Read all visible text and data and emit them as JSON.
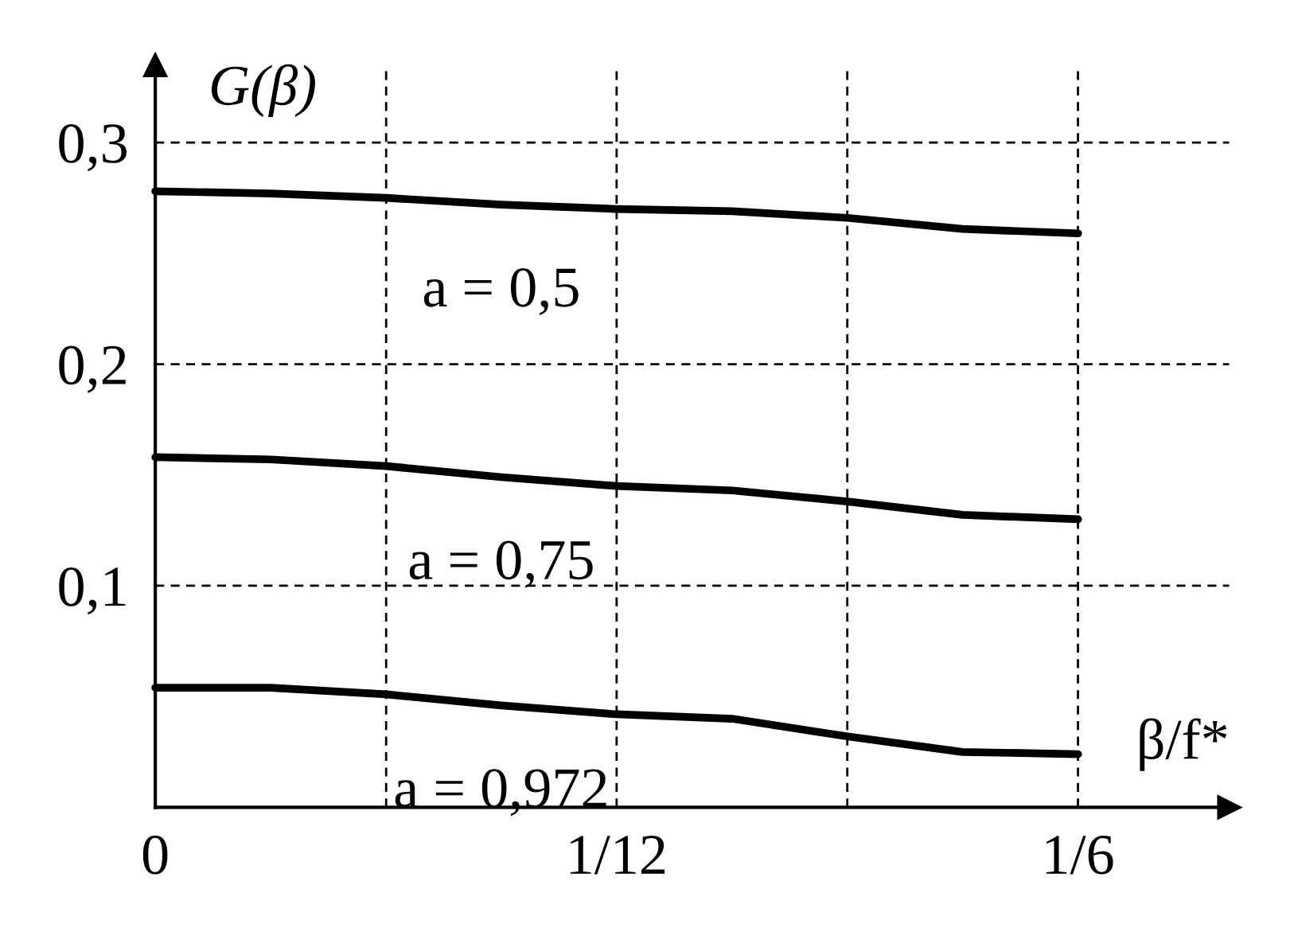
{
  "chart_data": {
    "type": "line",
    "xlabel": "β/f*",
    "ylabel": "G(β)",
    "x": [
      0,
      0.0208,
      0.0417,
      0.0625,
      0.0833,
      0.1042,
      0.125,
      0.1458,
      0.1667
    ],
    "series": [
      {
        "color": "#000000",
        "values": [
          0.278,
          0.277,
          0.275,
          0.272,
          0.27,
          0.269,
          0.266,
          0.261,
          0.259
        ]
      },
      {
        "color": "#000000",
        "values": [
          0.158,
          0.157,
          0.154,
          0.149,
          0.145,
          0.143,
          0.138,
          0.132,
          0.13
        ]
      },
      {
        "color": "#000000",
        "values": [
          0.054,
          0.054,
          0.051,
          0.046,
          0.042,
          0.04,
          0.032,
          0.025,
          0.024
        ]
      }
    ],
    "annotations": [
      "a = 0,5",
      "a = 0,75",
      "a = 0,972"
    ],
    "xlim": [
      0,
      0.194
    ],
    "ylim": [
      0,
      0.335
    ],
    "xticks": [
      0,
      {
        "value": 0.0417,
        "label": null
      },
      {
        "value": 0.0833333,
        "label": "1/12"
      },
      {
        "value": 0.125,
        "label": null
      },
      {
        "value": 0.1666667,
        "label": "1/6"
      }
    ],
    "yticks": [
      {
        "value": 0.1,
        "label": "0,1"
      },
      {
        "value": 0.2,
        "label": "0,2"
      },
      {
        "value": 0.3,
        "label": "0,3"
      }
    ],
    "grid": true,
    "marker": "none",
    "line_style": "solid"
  }
}
